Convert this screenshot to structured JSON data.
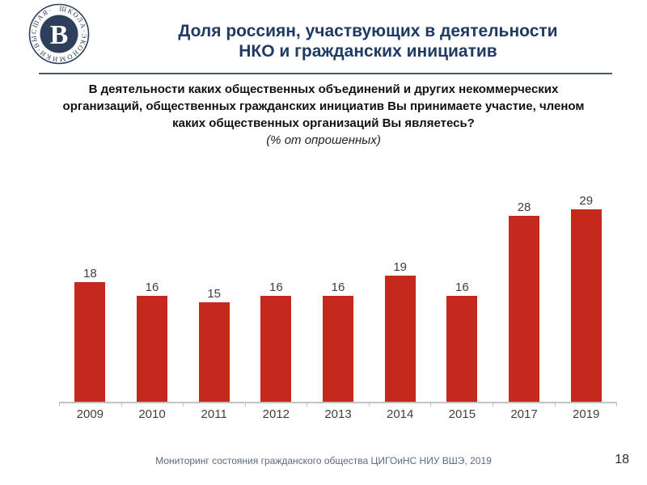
{
  "header": {
    "title_line1": "Доля россиян, участвующих в деятельности",
    "title_line2": "НКО и гражданских инициатив",
    "title_color": "#1f3a63"
  },
  "logo": {
    "name": "hse-logo",
    "ring_text": "ШКОЛА·ЭКОНОМИКИ·ВЫСШАЯ·",
    "monogram": "В",
    "color": "#2e3f5c"
  },
  "question": {
    "line1": "В деятельности каких общественных объединений и других некоммерческих",
    "line2": "организаций, общественных гражданских инициатив Вы принимаете участие, членом",
    "line3": "каких общественных организаций Вы являетесь?",
    "note": "(% от опрошенных)"
  },
  "chart_data": {
    "type": "bar",
    "title": "Доля россиян, участвующих в деятельности НКО и гражданских инициатив",
    "subtitle": "В деятельности каких общественных объединений и других некоммерческих организаций, общественных гражданских инициатив Вы принимаете участие, членом каких общественных организаций Вы являетесь? (% от опрошенных)",
    "categories": [
      "2009",
      "2010",
      "2011",
      "2012",
      "2013",
      "2014",
      "2015",
      "2017",
      "2019"
    ],
    "values": [
      18,
      16,
      15,
      16,
      16,
      19,
      16,
      28,
      29
    ],
    "bar_color": "#c4291b",
    "value_label_color": "#3f3f3f",
    "axis_color": "#c3c3c3",
    "xlabel": "",
    "ylabel": "",
    "ylim": [
      0,
      33
    ],
    "grid": false,
    "legend": false,
    "data_labels": true
  },
  "footer": {
    "source": "Мониторинг состояния гражданского общества ЦИГОиНС НИУ ВШЭ, 2019",
    "page_number": "18"
  }
}
